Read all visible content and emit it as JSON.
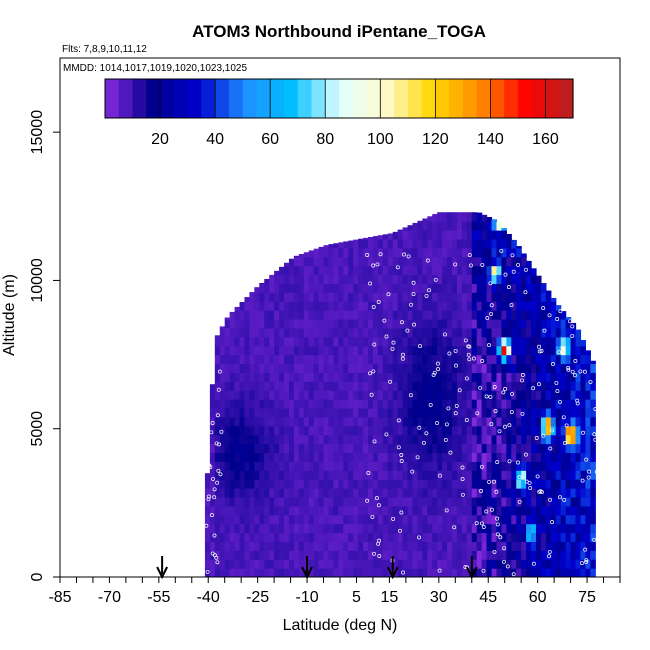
{
  "chart_data": {
    "type": "heatmap",
    "title": "ATOM3 Northbound iPentane_TOGA",
    "flights_note": "Flts: 7,8,9,10,11,12",
    "dates_note": "MMDD: 1014,1017,1019,1020,1023,1025",
    "xlabel": "Latitude (deg N)",
    "ylabel": "Altitude (m)",
    "xlim": [
      -85,
      85
    ],
    "ylim": [
      0,
      17500
    ],
    "x_ticks": [
      -85,
      -70,
      -55,
      -40,
      -25,
      -10,
      5,
      15,
      30,
      45,
      60,
      75
    ],
    "y_ticks": [
      0,
      5000,
      10000,
      15000
    ],
    "colorbar": {
      "range": [
        0,
        170
      ],
      "ticks": [
        20,
        40,
        60,
        80,
        100,
        120,
        140,
        160
      ],
      "colors": [
        "#8a2be2",
        "#00008b",
        "#0000cd",
        "#1e90ff",
        "#00bfff",
        "#e0ffff",
        "#fffacd",
        "#ffd700",
        "#ff8c00",
        "#ff0000",
        "#b22222"
      ]
    },
    "arrows_latitude": [
      -54,
      -10,
      16,
      40
    ],
    "profile": {
      "lat_edges": [
        -41,
        -38,
        -34,
        -25,
        -14,
        -4,
        6,
        16,
        24,
        30,
        36,
        42,
        48,
        54,
        60,
        66,
        72,
        78
      ],
      "top_altitude": [
        2000,
        8000,
        8800,
        9800,
        10800,
        11200,
        11400,
        11600,
        12000,
        12300,
        12300,
        12300,
        12000,
        11200,
        10200,
        9200,
        8400,
        7000
      ]
    },
    "enhancements": [
      {
        "lat": 50,
        "alt": 7700,
        "value": 140
      },
      {
        "lat": 70,
        "alt": 4800,
        "value": 150
      },
      {
        "lat": 63,
        "alt": 5100,
        "value": 120
      },
      {
        "lat": 68,
        "alt": 7700,
        "value": 70
      },
      {
        "lat": 47,
        "alt": 10300,
        "value": 85
      },
      {
        "lat": 48,
        "alt": 12000,
        "value": 75
      },
      {
        "lat": 55,
        "alt": 3300,
        "value": 80
      },
      {
        "lat": 58,
        "alt": 1500,
        "value": 60
      }
    ]
  }
}
